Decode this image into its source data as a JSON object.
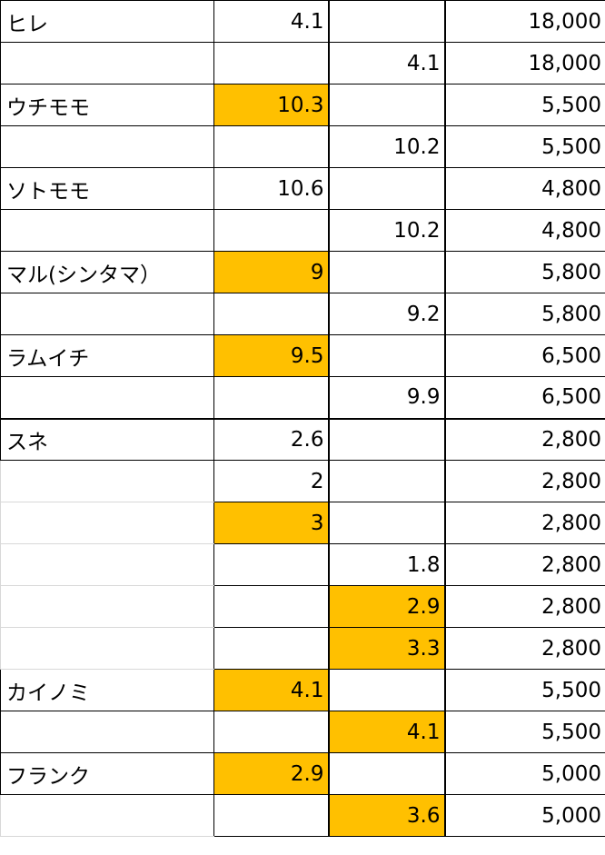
{
  "highlight_color": "#ffc000",
  "rows": [
    {
      "name": "ヒレ",
      "a": "4.1",
      "b": "",
      "price": "18,000",
      "hl_a": false,
      "hl_b": false
    },
    {
      "name": "",
      "a": "",
      "b": "4.1",
      "price": "18,000",
      "hl_a": false,
      "hl_b": false
    },
    {
      "name": "ウチモモ",
      "a": "10.3",
      "b": "",
      "price": "5,500",
      "hl_a": true,
      "hl_b": false
    },
    {
      "name": "",
      "a": "",
      "b": "10.2",
      "price": "5,500",
      "hl_a": false,
      "hl_b": false
    },
    {
      "name": "ソトモモ",
      "a": "10.6",
      "b": "",
      "price": "4,800",
      "hl_a": false,
      "hl_b": false
    },
    {
      "name": "",
      "a": "",
      "b": "10.2",
      "price": "4,800",
      "hl_a": false,
      "hl_b": false
    },
    {
      "name": "マル(シンタマ）",
      "a": "9",
      "b": "",
      "price": "5,800",
      "hl_a": true,
      "hl_b": false
    },
    {
      "name": "",
      "a": "",
      "b": "9.2",
      "price": "5,800",
      "hl_a": false,
      "hl_b": false
    },
    {
      "name": "ラムイチ",
      "a": "9.5",
      "b": "",
      "price": "6,500",
      "hl_a": true,
      "hl_b": false
    },
    {
      "name": "",
      "a": "",
      "b": "9.9",
      "price": "6,500",
      "hl_a": false,
      "hl_b": false
    },
    {
      "name": "スネ",
      "a": "2.6",
      "b": "",
      "price": "2,800",
      "hl_a": false,
      "hl_b": false
    },
    {
      "name": "",
      "a": "2",
      "b": "",
      "price": "2,800",
      "hl_a": false,
      "hl_b": false
    },
    {
      "name": "",
      "a": "3",
      "b": "",
      "price": "2,800",
      "hl_a": true,
      "hl_b": false
    },
    {
      "name": "",
      "a": "",
      "b": "1.8",
      "price": "2,800",
      "hl_a": false,
      "hl_b": false
    },
    {
      "name": "",
      "a": "",
      "b": "2.9",
      "price": "2,800",
      "hl_a": false,
      "hl_b": true
    },
    {
      "name": "",
      "a": "",
      "b": "3.3",
      "price": "2,800",
      "hl_a": false,
      "hl_b": true
    },
    {
      "name": "カイノミ",
      "a": "4.1",
      "b": "",
      "price": "5,500",
      "hl_a": true,
      "hl_b": false
    },
    {
      "name": "",
      "a": "",
      "b": "4.1",
      "price": "5,500",
      "hl_a": false,
      "hl_b": true
    },
    {
      "name": "フランク",
      "a": "2.9",
      "b": "",
      "price": "5,000",
      "hl_a": true,
      "hl_b": false
    },
    {
      "name": "",
      "a": "",
      "b": "3.6",
      "price": "5,000",
      "hl_a": false,
      "hl_b": true
    }
  ]
}
